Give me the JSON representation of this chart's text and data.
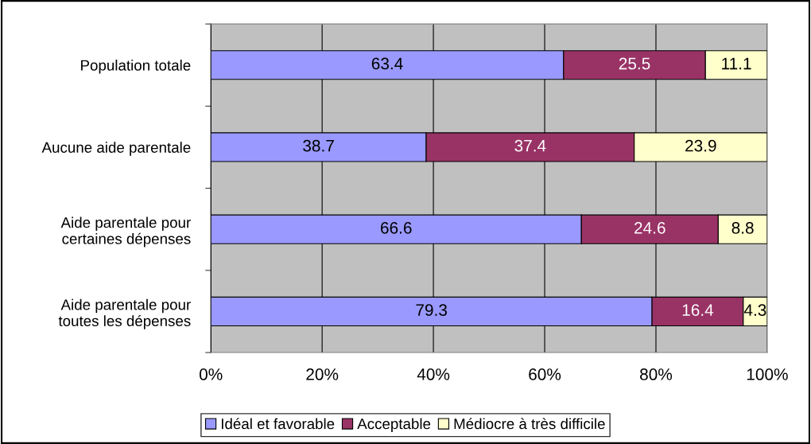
{
  "chart_data": {
    "type": "bar",
    "orientation": "horizontal",
    "stacked": true,
    "categories": [
      "Population totale",
      "Aucune aide parentale",
      "Aide parentale pour\ncertaines dépenses",
      "Aide parentale pour\ntoutes les dépenses"
    ],
    "series": [
      {
        "name": "Idéal et favorable",
        "color": "#9999ff",
        "values": [
          63.4,
          38.7,
          66.6,
          79.3
        ]
      },
      {
        "name": "Acceptable",
        "color": "#993366",
        "values": [
          25.5,
          37.4,
          24.6,
          16.4
        ]
      },
      {
        "name": "Médiocre à très difficile",
        "color": "#ffffcc",
        "values": [
          11.1,
          23.9,
          8.8,
          4.3
        ]
      }
    ],
    "xlim": [
      0,
      100
    ],
    "xticks": [
      {
        "value": 0,
        "label": "0%"
      },
      {
        "value": 20,
        "label": "20%"
      },
      {
        "value": 40,
        "label": "40%"
      },
      {
        "value": 60,
        "label": "60%"
      },
      {
        "value": 80,
        "label": "80%"
      },
      {
        "value": 100,
        "label": "100%"
      }
    ],
    "grid": "x",
    "data_labels": true,
    "legend": "bottom"
  }
}
